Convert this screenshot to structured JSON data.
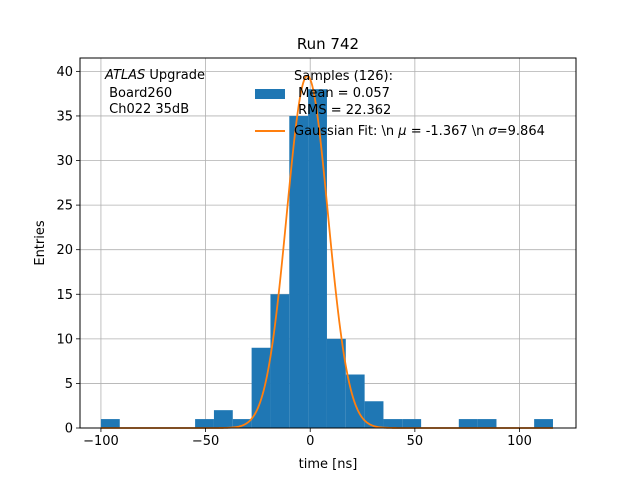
{
  "chart_data": {
    "type": "bar",
    "title": "Run 742",
    "xlabel": "time [ns]",
    "ylabel": "Entries",
    "xlim": [
      -110,
      127
    ],
    "ylim": [
      0,
      41.5
    ],
    "xticks": [
      -100,
      -50,
      0,
      50,
      100
    ],
    "yticks": [
      0,
      5,
      10,
      15,
      20,
      25,
      30,
      35,
      40
    ],
    "grid": true,
    "annotation": {
      "italic": "ATLAS",
      "rest": " Upgrade",
      "line2": " Board260",
      "line3": " Ch022 35dB"
    },
    "legend": {
      "placement": "top-right",
      "hist_label_lines": [
        "Samples (126):",
        " Mean = 0.057",
        " RMS = 22.362"
      ],
      "fit_label_prefix": "Gaussian Fit: \\n ",
      "fit_mu_symbol": "μ",
      "fit_mu_text": " = -1.367 \\n ",
      "fit_sigma_symbol": "σ",
      "fit_sigma_text": "=9.864"
    },
    "histogram": {
      "color": "#1f77b4",
      "bins": [
        {
          "x0": -100.0,
          "x1": -91.0,
          "count": 1
        },
        {
          "x0": -55.0,
          "x1": -46.0,
          "count": 1
        },
        {
          "x0": -46.0,
          "x1": -37.0,
          "count": 2
        },
        {
          "x0": -37.0,
          "x1": -28.0,
          "count": 1
        },
        {
          "x0": -28.0,
          "x1": -19.0,
          "count": 9
        },
        {
          "x0": -19.0,
          "x1": -10.0,
          "count": 15
        },
        {
          "x0": -10.0,
          "x1": -1.0,
          "count": 35
        },
        {
          "x0": -1.0,
          "x1": 8.0,
          "count": 38
        },
        {
          "x0": 8.0,
          "x1": 17.0,
          "count": 10
        },
        {
          "x0": 17.0,
          "x1": 26.0,
          "count": 6
        },
        {
          "x0": 26.0,
          "x1": 35.0,
          "count": 3
        },
        {
          "x0": 35.0,
          "x1": 44.0,
          "count": 1
        },
        {
          "x0": 44.0,
          "x1": 53.0,
          "count": 1
        },
        {
          "x0": 71.0,
          "x1": 80.0,
          "count": 1
        },
        {
          "x0": 80.0,
          "x1": 89.0,
          "count": 1
        },
        {
          "x0": 107.0,
          "x1": 116.0,
          "count": 1
        }
      ]
    },
    "fit": {
      "color": "#ff7f0e",
      "amplitude": 39.5,
      "mu": -1.367,
      "sigma": 9.864,
      "x_range": [
        -100,
        116
      ]
    }
  }
}
